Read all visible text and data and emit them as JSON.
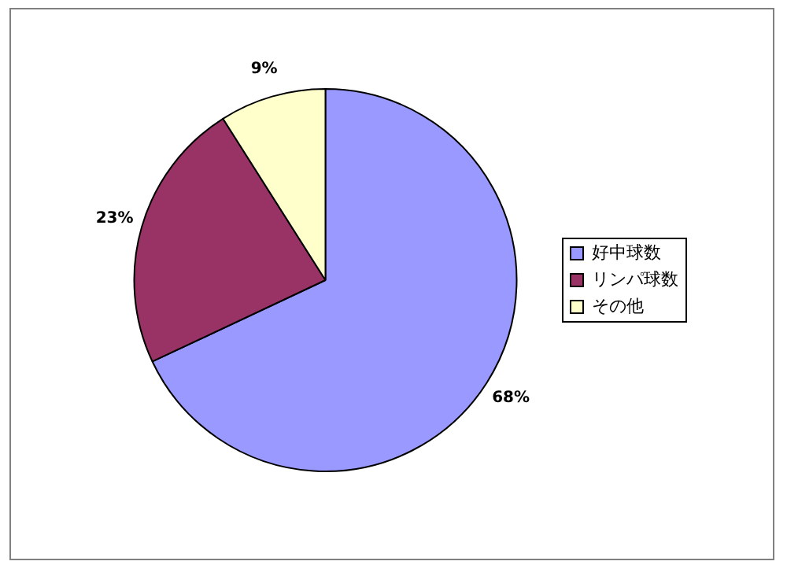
{
  "chart_data": {
    "type": "pie",
    "categories": [
      "好中球数",
      "リンパ球数",
      "その他"
    ],
    "values": [
      68,
      23,
      9
    ],
    "colors": [
      "#9999ff",
      "#993366",
      "#ffffcc"
    ],
    "value_labels": [
      "68%",
      "23%",
      "9%"
    ],
    "legend": "right"
  }
}
